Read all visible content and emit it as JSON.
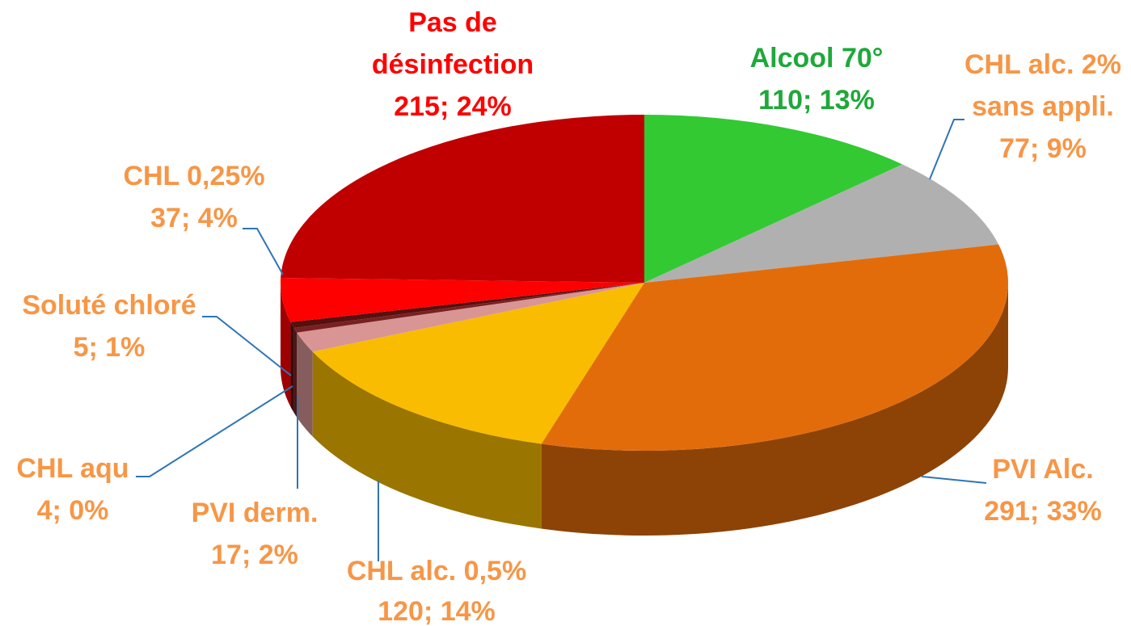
{
  "chart_data": {
    "type": "pie3d",
    "categories": [
      "Alcool 70°",
      "CHL alc. 2% sans appli.",
      "PVI Alc.",
      "CHL alc. 0,5%",
      "PVI derm.",
      "CHL aqu",
      "Soluté chloré",
      "CHL 0,25%",
      "Pas de désinfection"
    ],
    "values": [
      110,
      77,
      291,
      120,
      17,
      4,
      5,
      37,
      215
    ],
    "value_labels": [
      "110; 13%",
      "77; 9%",
      "291; 33%",
      "120; 14%",
      "17; 2%",
      "4; 0%",
      "5; 1%",
      "37; 4%",
      "215; 24%"
    ],
    "colors": [
      "#33c933",
      "#b0b0b0",
      "#e36c0a",
      "#f9bc00",
      "#d99594",
      "#7a2020",
      "#551010",
      "#ff0000",
      "#c00000"
    ],
    "label_colors": [
      "#1fa83a",
      "#f79646",
      "#f79646",
      "#f79646",
      "#f79646",
      "#f79646",
      "#f79646",
      "#f79646",
      "#ff0000"
    ]
  }
}
